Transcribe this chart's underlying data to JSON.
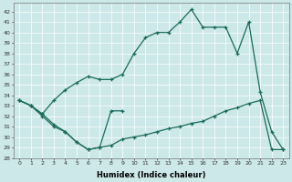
{
  "xlabel": "Humidex (Indice chaleur)",
  "background_color": "#cce8e8",
  "line_color": "#1a6b5a",
  "xlim": [
    -0.5,
    23.5
  ],
  "ylim": [
    28,
    42.8
  ],
  "yticks": [
    28,
    29,
    30,
    31,
    32,
    33,
    34,
    35,
    36,
    37,
    38,
    39,
    40,
    41,
    42
  ],
  "xticks": [
    0,
    1,
    2,
    3,
    4,
    5,
    6,
    7,
    8,
    9,
    10,
    11,
    12,
    13,
    14,
    15,
    16,
    17,
    18,
    19,
    20,
    21,
    22,
    23
  ],
  "s1_x": [
    0,
    1,
    2,
    3,
    4,
    5,
    6,
    7,
    8,
    9
  ],
  "s1_y": [
    33.5,
    33.0,
    32.2,
    31.2,
    30.5,
    29.5,
    28.8,
    29.0,
    32.5,
    32.5
  ],
  "s2_x": [
    0,
    1,
    2,
    3,
    4,
    5,
    6,
    7,
    8,
    9,
    10,
    11,
    12,
    13,
    14,
    15,
    16,
    17,
    18,
    19,
    20,
    21,
    22,
    23
  ],
  "s2_y": [
    33.5,
    33.0,
    32.2,
    33.5,
    34.5,
    35.2,
    35.8,
    35.5,
    35.5,
    36.0,
    38.0,
    39.5,
    40.0,
    40.0,
    41.0,
    42.2,
    40.5,
    40.5,
    40.5,
    38.0,
    41.0,
    34.3,
    30.5,
    28.8
  ],
  "s3_x": [
    0,
    1,
    2,
    3,
    4,
    5,
    6,
    7,
    8,
    9,
    10,
    11,
    12,
    13,
    14,
    15,
    16,
    17,
    18,
    19,
    20,
    21,
    22,
    23
  ],
  "s3_y": [
    33.5,
    33.0,
    32.0,
    31.0,
    30.5,
    29.5,
    28.8,
    29.0,
    29.2,
    29.8,
    30.0,
    30.2,
    30.5,
    30.8,
    31.0,
    31.3,
    31.5,
    32.0,
    32.5,
    32.8,
    33.2,
    33.5,
    28.8,
    28.8
  ]
}
